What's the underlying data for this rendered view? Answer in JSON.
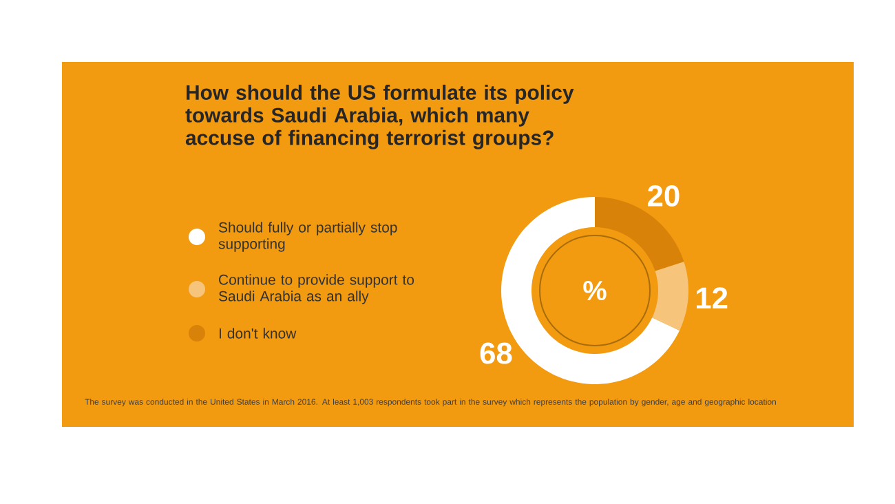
{
  "chart_data": {
    "type": "donut",
    "title": "How should the US formulate its policy towards Saudi Arabia, which many accuse of financing terrorist groups?",
    "categories": [
      "Should fully or partially stop supporting",
      "Continue to provide support to Saudi Arabia as an ally",
      "I don't know"
    ],
    "values": [
      68,
      12,
      20
    ],
    "colors": [
      "#ffffff",
      "#f7c47c",
      "#d9820a"
    ],
    "data_labels": true,
    "legend": "left",
    "annotations": [
      "%",
      "The survey was conducted in the United States in March 2016. At least 1,003 respondents took part in the survey which represents the population by gender, age and geographic location"
    ]
  }
}
